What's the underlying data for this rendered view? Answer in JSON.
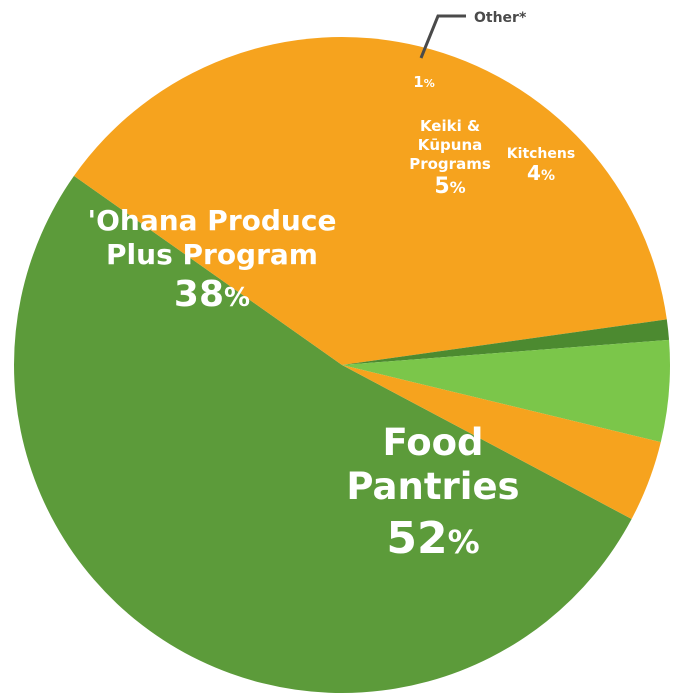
{
  "chart_data": {
    "type": "pie",
    "slices": [
      {
        "label": "Food Pantries",
        "label_lines": [
          "Food",
          "Pantries"
        ],
        "value": 52,
        "value_text": "52",
        "color": "#5c9b3a"
      },
      {
        "label": "'Ohana Produce Plus Program",
        "label_lines": [
          "'Ohana Produce",
          "Plus Program"
        ],
        "value": 38,
        "value_text": "38",
        "color": "#f6a31e"
      },
      {
        "label": "Other*",
        "label_lines": [],
        "value": 1,
        "value_text": "1",
        "color": "#4c8a30"
      },
      {
        "label": "Keiki & Kūpuna Programs",
        "label_lines": [
          "Keiki &",
          "Kūpuna",
          "Programs"
        ],
        "value": 5,
        "value_text": "5",
        "color": "#7bc64a"
      },
      {
        "label": "Kitchens",
        "label_lines": [
          "Kitchens"
        ],
        "value": 4,
        "value_text": "4",
        "color": "#f6a31e"
      }
    ],
    "callout_label": "Other*",
    "percent_sign": "%"
  }
}
